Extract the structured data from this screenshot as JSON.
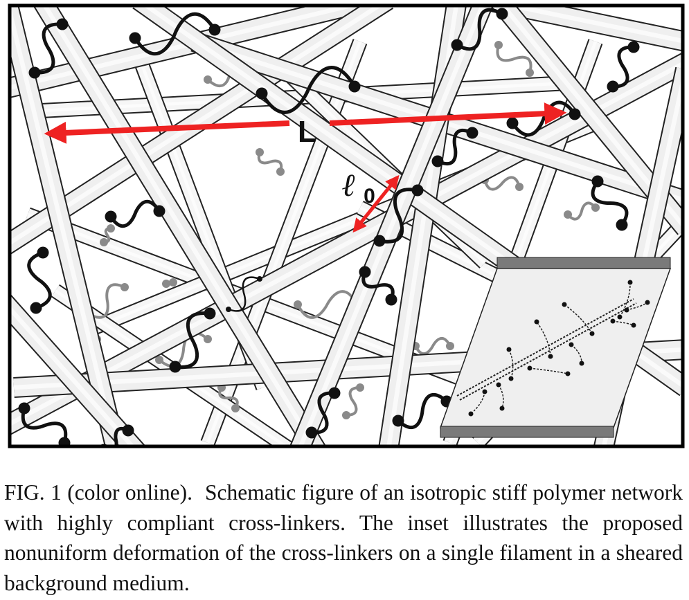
{
  "figure": {
    "label_L": "L",
    "label_l0_main": "ℓ",
    "label_l0_sub": "0",
    "colors": {
      "arrow": "#ee2222",
      "filament_front": "#efefef",
      "filament_back": "#f6f6f6",
      "crosslinker_front": "#111111",
      "crosslinker_back": "#8a8a8a",
      "inset_plate": "#7a7a7a",
      "inset_background": "#efefef",
      "frame": "#000000"
    }
  },
  "caption": {
    "tag": "FIG. 1 (color online).",
    "text": "Schematic figure of an isotropic stiff polymer network with highly compliant cross-linkers. The inset illustrates the proposed nonuniform deformation of the cross-linkers on a single filament in a sheared background medium."
  }
}
